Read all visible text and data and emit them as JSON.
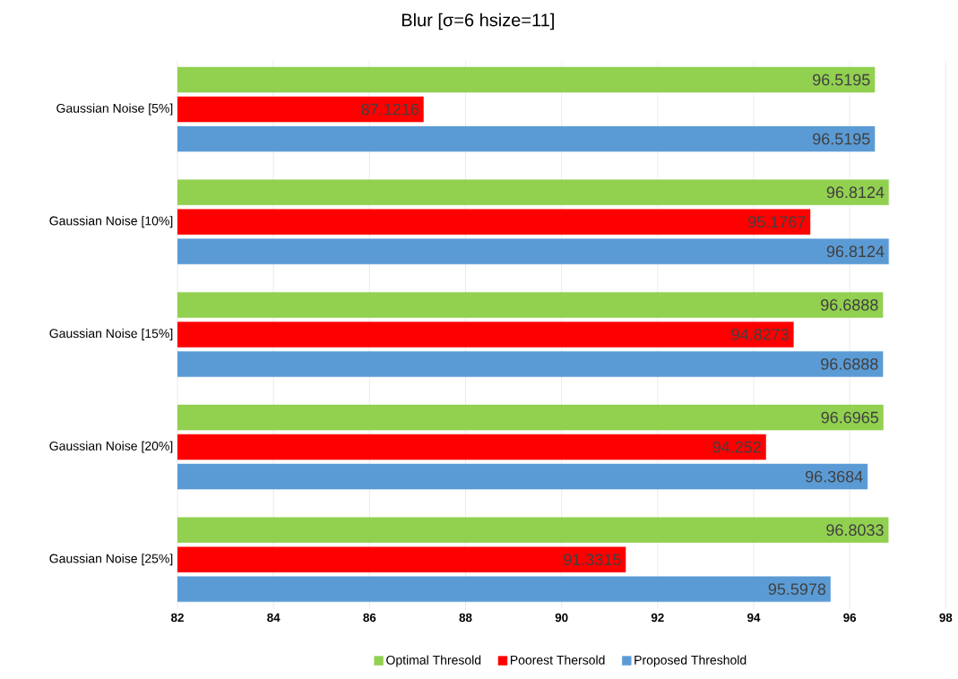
{
  "chart_data": {
    "type": "bar",
    "orientation": "horizontal",
    "title": "Blur [σ=6 hsize=11]",
    "categories": [
      "Gaussian Noise [5%]",
      "Gaussian Noise [10%]",
      "Gaussian Noise [15%]",
      "Gaussian Noise [20%]",
      "Gaussian Noise [25%]"
    ],
    "series": [
      {
        "name": "Optimal Thresold",
        "color": "#92d050",
        "values": [
          96.5195,
          96.8124,
          96.6888,
          96.6965,
          96.8033
        ]
      },
      {
        "name": "Poorest Thersold",
        "color": "#ff0000",
        "values": [
          87.1216,
          95.1767,
          94.8273,
          94.252,
          91.3315
        ]
      },
      {
        "name": "Proposed Threshold",
        "color": "#5b9bd5",
        "values": [
          96.5195,
          96.8124,
          96.6888,
          96.3684,
          95.5978
        ]
      }
    ],
    "xlim": [
      82,
      98
    ],
    "xticks": [
      82,
      84,
      86,
      88,
      90,
      92,
      94,
      96,
      98
    ],
    "grid": "x",
    "legend": "bottom",
    "data_labels": true
  }
}
